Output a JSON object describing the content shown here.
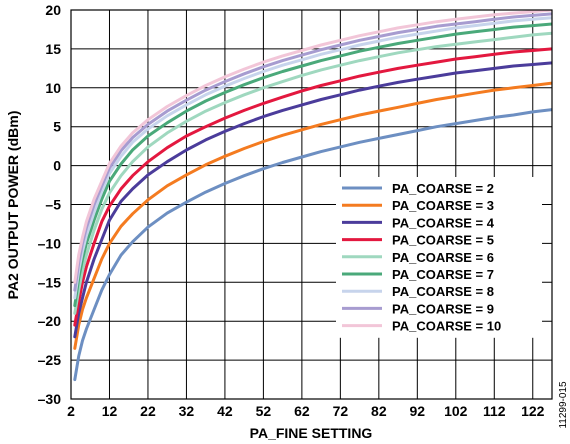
{
  "chart_data": {
    "type": "line",
    "xlabel": "PA_FINE SETTING",
    "ylabel": "PA2 OUTPUT POWER (dBm)",
    "xlim": [
      2,
      127
    ],
    "ylim": [
      -30,
      20
    ],
    "xticks": [
      2,
      12,
      22,
      32,
      42,
      52,
      62,
      72,
      82,
      92,
      102,
      112,
      122
    ],
    "yticks": [
      -30,
      -25,
      -20,
      -15,
      -10,
      -5,
      0,
      5,
      10,
      15,
      20
    ],
    "grid": true,
    "legend_position": "bottom-right",
    "x": [
      3,
      4,
      5,
      6,
      8,
      10,
      12,
      15,
      18,
      22,
      27,
      32,
      37,
      42,
      47,
      52,
      57,
      62,
      67,
      72,
      77,
      82,
      87,
      92,
      97,
      102,
      107,
      112,
      117,
      122,
      127
    ],
    "series": [
      {
        "name": "PA_COARSE = 2",
        "color": "#6d8fc2",
        "values": [
          -27.5,
          -24.5,
          -22.5,
          -21.0,
          -18.5,
          -16.0,
          -14.0,
          -11.5,
          -9.8,
          -7.9,
          -6.1,
          -4.7,
          -3.4,
          -2.3,
          -1.3,
          -0.4,
          0.4,
          1.1,
          1.8,
          2.4,
          3.0,
          3.5,
          4.0,
          4.5,
          5.0,
          5.4,
          5.8,
          6.2,
          6.5,
          6.9,
          7.2
        ]
      },
      {
        "name": "PA_COARSE = 3",
        "color": "#f47b20",
        "values": [
          -23.5,
          -20.5,
          -18.5,
          -17.0,
          -14.5,
          -12.0,
          -10.0,
          -7.8,
          -6.2,
          -4.4,
          -2.6,
          -1.2,
          0.1,
          1.2,
          2.2,
          3.1,
          3.9,
          4.6,
          5.3,
          5.9,
          6.5,
          7.0,
          7.5,
          8.0,
          8.5,
          8.9,
          9.3,
          9.7,
          10.0,
          10.3,
          10.6
        ]
      },
      {
        "name": "PA_COARSE = 4",
        "color": "#4b3c9b",
        "values": [
          -22.0,
          -19.0,
          -17.0,
          -15.0,
          -12.0,
          -9.5,
          -7.0,
          -4.6,
          -3.0,
          -1.2,
          0.5,
          2.0,
          3.3,
          4.4,
          5.4,
          6.3,
          7.1,
          7.8,
          8.5,
          9.1,
          9.7,
          10.2,
          10.7,
          11.1,
          11.5,
          11.9,
          12.2,
          12.5,
          12.8,
          13.0,
          13.2
        ]
      },
      {
        "name": "PA_COARSE = 5",
        "color": "#e3183f",
        "values": [
          -20.5,
          -17.5,
          -15.0,
          -13.0,
          -10.0,
          -7.2,
          -5.2,
          -3.0,
          -1.3,
          0.5,
          2.3,
          3.8,
          5.0,
          6.1,
          7.1,
          8.0,
          8.8,
          9.6,
          10.3,
          10.9,
          11.5,
          12.0,
          12.5,
          12.9,
          13.3,
          13.7,
          14.0,
          14.3,
          14.6,
          14.8,
          15.0
        ]
      },
      {
        "name": "PA_COARSE = 6",
        "color": "#9fd8bf",
        "values": [
          -19.0,
          -16.0,
          -13.5,
          -11.5,
          -8.3,
          -5.6,
          -3.5,
          -1.3,
          0.5,
          2.4,
          4.2,
          5.7,
          7.0,
          8.1,
          9.1,
          10.0,
          10.8,
          11.6,
          12.3,
          12.9,
          13.5,
          14.0,
          14.5,
          14.9,
          15.3,
          15.6,
          15.9,
          16.2,
          16.5,
          16.8,
          17.0
        ]
      },
      {
        "name": "PA_COARSE = 7",
        "color": "#4aa97a",
        "values": [
          -18.0,
          -14.5,
          -12.0,
          -10.0,
          -7.0,
          -4.3,
          -2.0,
          0.2,
          2.0,
          3.8,
          5.5,
          7.0,
          8.3,
          9.4,
          10.4,
          11.3,
          12.1,
          12.8,
          13.5,
          14.1,
          14.7,
          15.2,
          15.7,
          16.1,
          16.5,
          16.9,
          17.2,
          17.5,
          17.8,
          18.0,
          18.2
        ]
      },
      {
        "name": "PA_COARSE = 8",
        "color": "#c7d4ec",
        "values": [
          -17.0,
          -13.5,
          -11.0,
          -9.0,
          -6.0,
          -3.3,
          -1.0,
          1.2,
          3.0,
          4.7,
          6.4,
          7.8,
          9.1,
          10.2,
          11.2,
          12.1,
          12.9,
          13.6,
          14.3,
          14.9,
          15.5,
          16.0,
          16.5,
          16.9,
          17.3,
          17.7,
          18.0,
          18.3,
          18.6,
          18.8,
          19.0
        ]
      },
      {
        "name": "PA_COARSE = 9",
        "color": "#a79cd0",
        "values": [
          -16.0,
          -12.5,
          -10.0,
          -8.0,
          -5.0,
          -2.6,
          -0.3,
          1.9,
          3.6,
          5.3,
          7.0,
          8.4,
          9.7,
          10.8,
          11.8,
          12.7,
          13.5,
          14.2,
          14.9,
          15.5,
          16.1,
          16.6,
          17.1,
          17.5,
          17.9,
          18.2,
          18.5,
          18.8,
          19.1,
          19.3,
          19.5
        ]
      },
      {
        "name": "PA_COARSE = 10",
        "color": "#f2c6d8",
        "values": [
          -15.0,
          -11.5,
          -9.2,
          -7.2,
          -4.3,
          -2.0,
          0.3,
          2.5,
          4.2,
          5.9,
          7.6,
          9.0,
          10.3,
          11.4,
          12.4,
          13.3,
          14.1,
          14.8,
          15.5,
          16.1,
          16.7,
          17.2,
          17.7,
          18.1,
          18.5,
          18.8,
          19.1,
          19.4,
          19.6,
          19.8,
          20.0
        ]
      }
    ]
  },
  "figure_id": "11299-015"
}
